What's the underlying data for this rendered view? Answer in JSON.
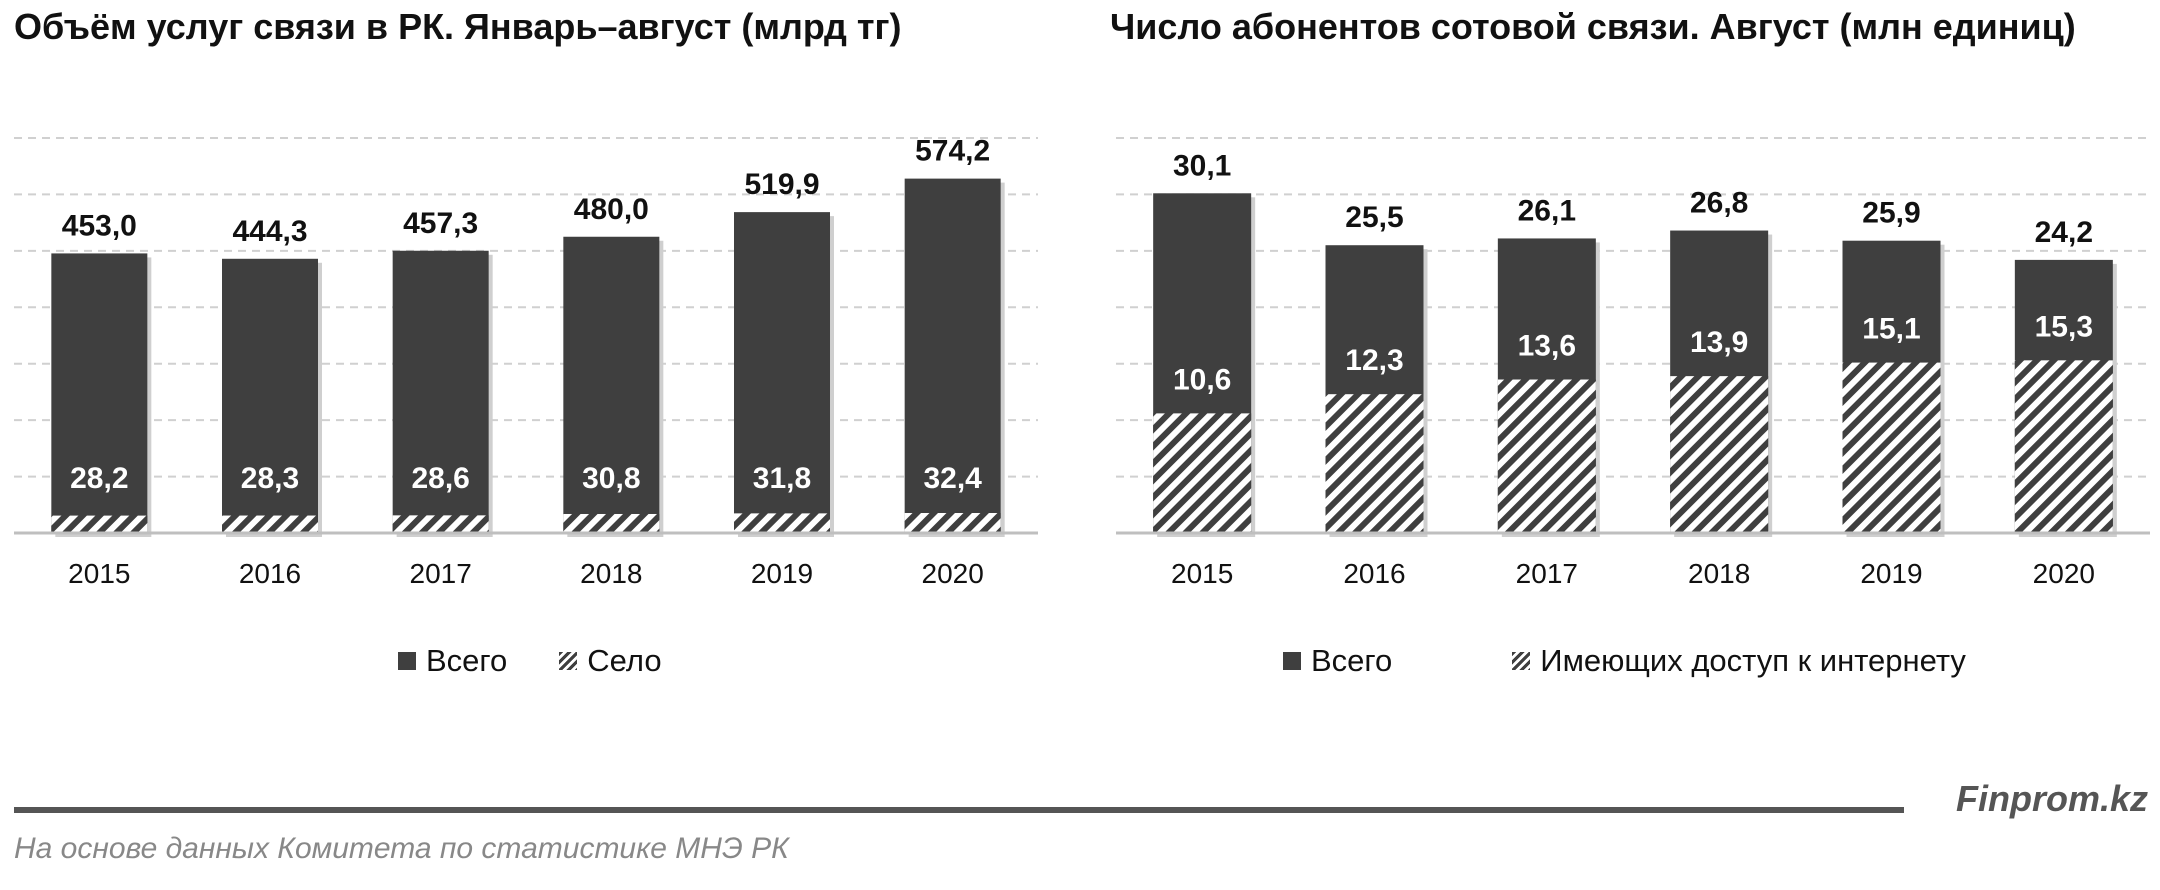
{
  "chart_data": [
    {
      "type": "bar",
      "title": "Объём услуг связи  в РК. Январь–август (млрд тг)",
      "categories": [
        "2015",
        "2016",
        "2017",
        "2018",
        "2019",
        "2020"
      ],
      "series": [
        {
          "name": "Всего",
          "values": [
            453.0,
            444.3,
            457.3,
            480.0,
            519.9,
            574.2
          ]
        },
        {
          "name": "Село",
          "values": [
            28.2,
            28.3,
            28.6,
            30.8,
            31.8,
            32.4
          ]
        }
      ],
      "labels_total": [
        "453,0",
        "444,3",
        "457,3",
        "480,0",
        "519,9",
        "574,2"
      ],
      "labels_sub": [
        "28,2",
        "28,3",
        "28,6",
        "30,8",
        "31,8",
        "32,4"
      ],
      "ylim": [
        0,
        640
      ],
      "grid": true,
      "legend": "bottom"
    },
    {
      "type": "bar",
      "title": "Число абонентов сотовой связи.  Август (млн единиц)",
      "categories": [
        "2015",
        "2016",
        "2017",
        "2018",
        "2019",
        "2020"
      ],
      "series": [
        {
          "name": "Всего",
          "values": [
            30.1,
            25.5,
            26.1,
            26.8,
            25.9,
            24.2
          ]
        },
        {
          "name": "Имеющих доступ к интернету",
          "values": [
            10.6,
            12.3,
            13.6,
            13.9,
            15.1,
            15.3
          ]
        }
      ],
      "labels_total": [
        "30,1",
        "25,5",
        "26,1",
        "26,8",
        "25,9",
        "24,2"
      ],
      "labels_sub": [
        "10,6",
        "12,3",
        "13,6",
        "13,9",
        "15,1",
        "15,3"
      ],
      "ylim": [
        0,
        35
      ],
      "grid": true,
      "legend": "bottom"
    }
  ],
  "colors": {
    "bar": "#3f3f3f",
    "grid": "#d0d0d0",
    "hatch_bg": "#ffffff"
  },
  "legend_left": {
    "total": "Всего",
    "sub": "Село"
  },
  "legend_right": {
    "total": "Всего",
    "sub": "Имеющих доступ к интернету"
  },
  "footer": {
    "brand": "Finprom.kz",
    "source": "На основе данных  Комитета по статистике МНЭ РК"
  }
}
